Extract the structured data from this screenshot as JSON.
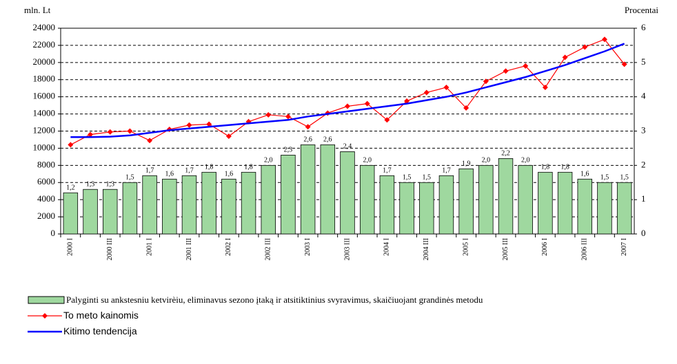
{
  "chart_data": {
    "type": "bar-line",
    "y_label": "mln. Lt",
    "y2_label": "Procentai",
    "categories": [
      "2000 I",
      null,
      "2000 III",
      null,
      "2001 I",
      null,
      "2001 III",
      null,
      "2002 I",
      null,
      "2002 III",
      null,
      "2003 I",
      null,
      "2003 III",
      null,
      "2004 I",
      null,
      "2004 III",
      null,
      "2005 I",
      null,
      "2005 III",
      null,
      "2006 I",
      null,
      "2006 III",
      null,
      "2007 I"
    ],
    "ylim": [
      0,
      24000
    ],
    "yticks": [
      0,
      2000,
      4000,
      6000,
      8000,
      10000,
      12000,
      14000,
      16000,
      18000,
      20000,
      22000,
      24000
    ],
    "y2lim": [
      0,
      6
    ],
    "y2ticks": [
      0,
      1,
      2,
      3,
      4,
      5,
      6
    ],
    "grid": true,
    "series": [
      {
        "name": "Palyginti su ankstesniu ketvirèiu, eliminavus sezono įtaką ir atsitiktinius svyravimus, skaičiuojant grandinės metodu",
        "kind": "bar",
        "axis": "y2",
        "color": "#9fd89f",
        "values": [
          1.2,
          1.3,
          1.3,
          1.5,
          1.7,
          1.6,
          1.7,
          1.8,
          1.6,
          1.8,
          2.0,
          2.3,
          2.6,
          2.6,
          2.4,
          2.0,
          1.7,
          1.5,
          1.5,
          1.7,
          1.9,
          2.0,
          2.2,
          2.0,
          1.8,
          1.8,
          1.6,
          1.5,
          1.5
        ],
        "value_labels": [
          "1,2",
          "1,3",
          "1,3",
          "1,5",
          "1,7",
          "1,6",
          "1,7",
          "1,8",
          "1,6",
          "1,8",
          "2,0",
          "2,3",
          "2,6",
          "2,6",
          "2,4",
          "2,0",
          "1,7",
          "1,5",
          "1,5",
          "1,7",
          "1,9",
          "2,0",
          "2,2",
          "2,0",
          "1,8",
          "1,8",
          "1,6",
          "1,5",
          "1,5"
        ]
      },
      {
        "name": "To meto kainomis",
        "kind": "line",
        "markers": true,
        "color": "#ff0000",
        "values": [
          10400,
          11600,
          11900,
          12000,
          10900,
          12200,
          12700,
          12800,
          11400,
          13100,
          13900,
          13700,
          12500,
          14100,
          14900,
          15200,
          13300,
          15500,
          16500,
          17100,
          14700,
          17800,
          19000,
          19600,
          17100,
          20600,
          21800,
          22700,
          19800
        ]
      },
      {
        "name": "Kitimo tendencija",
        "kind": "line",
        "markers": false,
        "color": "#0000ff",
        "values": [
          11300,
          11300,
          11350,
          11500,
          11800,
          12100,
          12300,
          12500,
          12700,
          12900,
          13100,
          13300,
          13700,
          14000,
          14300,
          14600,
          14900,
          15200,
          15600,
          16000,
          16500,
          17100,
          17700,
          18300,
          19000,
          19700,
          20500,
          21300,
          22200
        ]
      }
    ]
  }
}
